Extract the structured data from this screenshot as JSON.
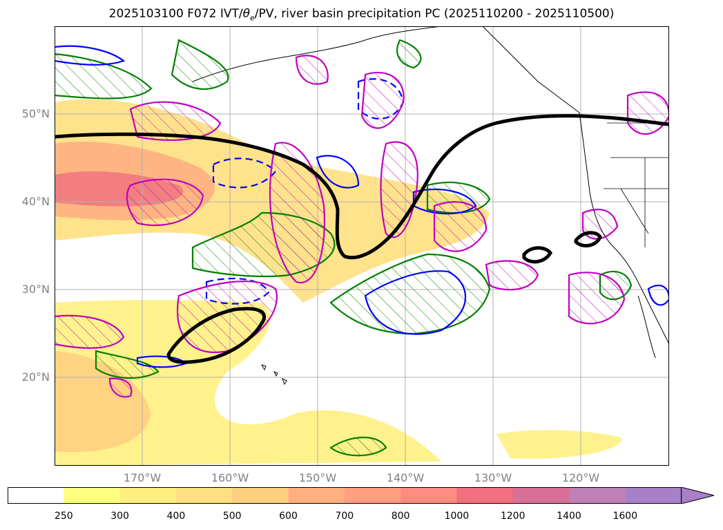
{
  "title": {
    "prefix": "2025103100 F072 IVT/",
    "theta_symbol": "θ",
    "theta_subscript": "e",
    "suffix": "/PV, river basin precipitation PC (2025110200 - 2025110500)"
  },
  "map": {
    "projection": "cylindrical",
    "lon_range": [
      -180,
      -110
    ],
    "lat_range": [
      10,
      60
    ],
    "gridlines": true,
    "lat_labels": [
      "50°N",
      "40°N",
      "30°N",
      "20°N"
    ],
    "lon_labels": [
      "170°W",
      "160°W",
      "150°W",
      "140°W",
      "130°W",
      "120°W"
    ]
  },
  "colorbar": {
    "levels": [
      "250",
      "300",
      "400",
      "500",
      "600",
      "700",
      "800",
      "1000",
      "1200",
      "1400",
      "1600"
    ],
    "colors": [
      "#ffffff",
      "#ffff80",
      "#ffef80",
      "#ffdf80",
      "#ffcf80",
      "#ffb080",
      "#ffa080",
      "#ff8c80",
      "#f07080",
      "#d87098",
      "#c080b8",
      "#a880c8"
    ],
    "extend": "max"
  },
  "colors": {
    "ivt_fill": "#ffd880",
    "contour_green": "#008000",
    "contour_blue": "#0000ff",
    "contour_magenta": "#c000c0",
    "pv_black": "#000000",
    "coast": "#000000"
  }
}
